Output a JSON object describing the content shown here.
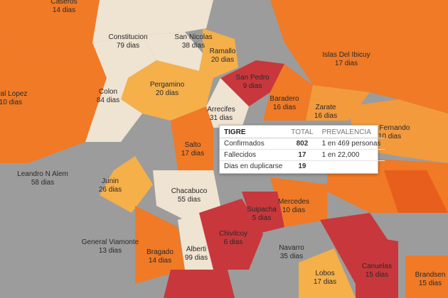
{
  "regions": [
    {
      "name": "Caseros",
      "days": "14 dias"
    },
    {
      "name": "Constitucion",
      "days": "79 dias"
    },
    {
      "name": "San Nicolas",
      "days": "38 dias"
    },
    {
      "name": "Ramallo",
      "days": "20 dias"
    },
    {
      "name": "Islas Del Ibicuy",
      "days": "17 dias"
    },
    {
      "name": "eral Lopez",
      "days": "10 dias"
    },
    {
      "name": "Colon",
      "days": "84 dias"
    },
    {
      "name": "Pergamino",
      "days": "20 dias"
    },
    {
      "name": "San Pedro",
      "days": "9 dias"
    },
    {
      "name": "Baradero",
      "days": "16 dias"
    },
    {
      "name": "Zarate",
      "days": "16 dias"
    },
    {
      "name": "Arrecifes",
      "days": "31 dias"
    },
    {
      "name": "an Fernando",
      "days": "10 dias"
    },
    {
      "name": "Salto",
      "days": "17 dias"
    },
    {
      "name": "Leandro N Alem",
      "days": "58 dias"
    },
    {
      "name": "Junin",
      "days": "26 dias"
    },
    {
      "name": "Chacabuco",
      "days": "55 dias"
    },
    {
      "name": "Mercedes",
      "days": "10 dias"
    },
    {
      "name": "Suipacha",
      "days": "5 dias"
    },
    {
      "name": "General Viamonte",
      "days": "13 dias"
    },
    {
      "name": "Chivilcoy",
      "days": "6 dias"
    },
    {
      "name": "Navarro",
      "days": "35 dias"
    },
    {
      "name": "Bragado",
      "days": "14 dias"
    },
    {
      "name": "Alberti",
      "days": "99 dias"
    },
    {
      "name": "Lobos",
      "days": "17 dias"
    },
    {
      "name": "Canuelas",
      "days": "15 dias"
    },
    {
      "name": "Brandsen",
      "days": "15 dias"
    }
  ],
  "tooltip": {
    "title": "TIGRE",
    "col_total": "TOTAL",
    "col_prevalence": "PREVALENCIA",
    "rows": [
      [
        "Confirmados",
        "802",
        "1 en 469 personas"
      ],
      [
        "Fallecidos",
        "17",
        "1 en 22,000"
      ],
      [
        "Dias en duplicarse",
        "19"
      ]
    ]
  }
}
